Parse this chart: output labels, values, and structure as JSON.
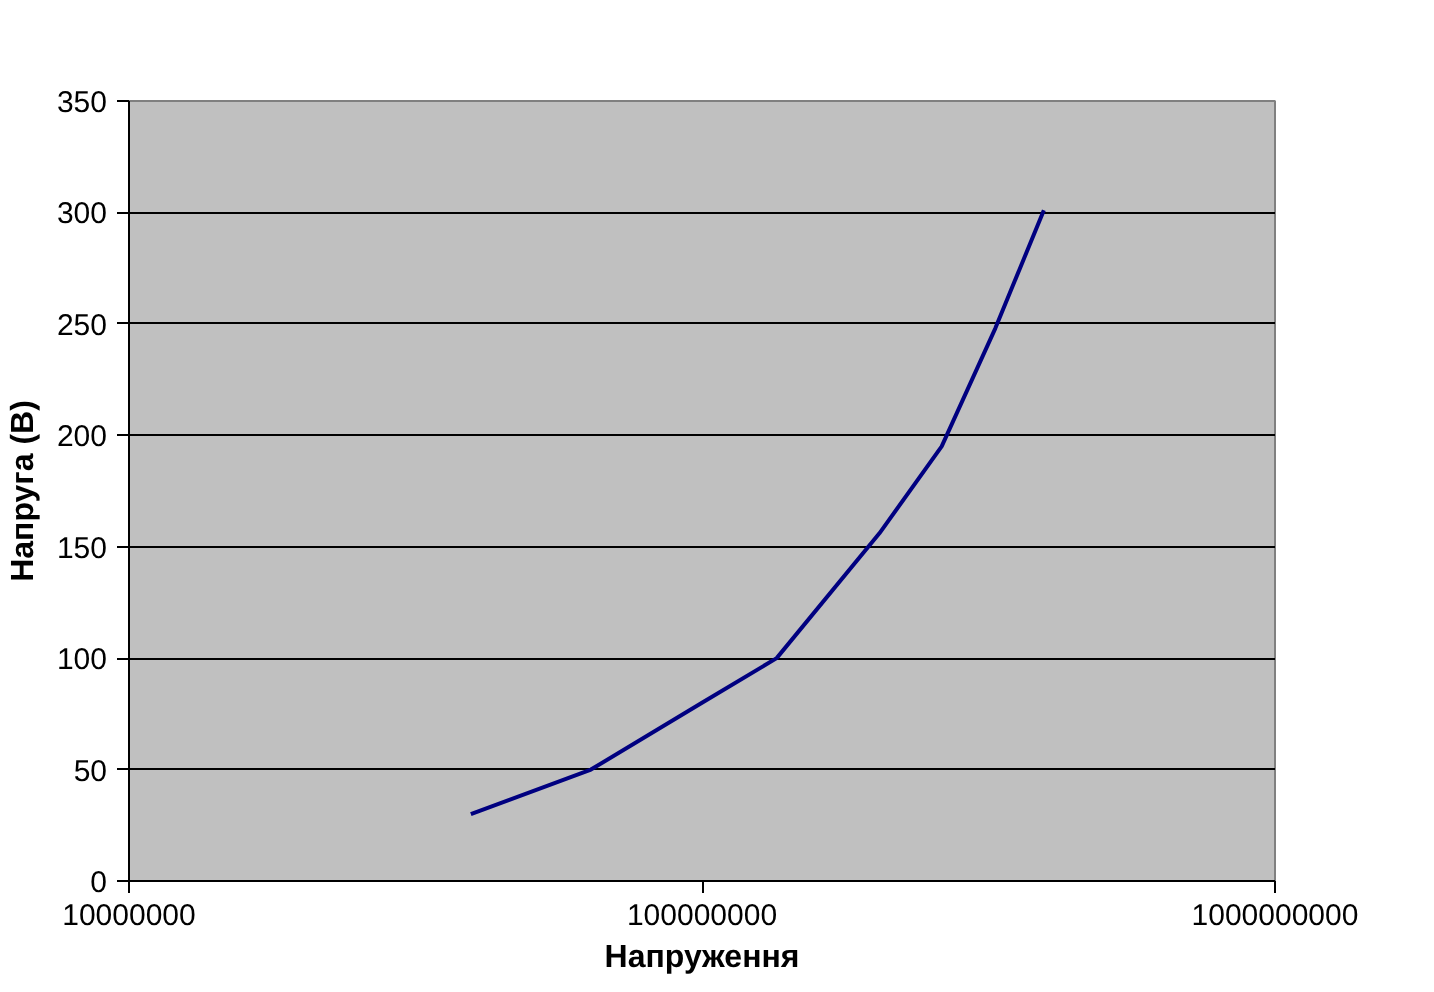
{
  "chart_data": {
    "type": "line",
    "xlabel": "Напруження",
    "ylabel": "Напруга (В)",
    "log": "x",
    "xlim": [
      10000000,
      1000000000
    ],
    "xticks": [
      10000000,
      100000000,
      1000000000
    ],
    "ylim": [
      0,
      350
    ],
    "yticks": [
      0,
      50,
      100,
      150,
      200,
      250,
      300,
      350
    ],
    "grid": "y",
    "x": [
      39500000,
      64000000,
      100000000,
      135000000,
      204000000,
      262000000,
      325000000,
      395000000
    ],
    "series": [
      {
        "color": "#000080",
        "values": [
          30,
          50,
          80,
          100,
          156,
          195,
          248,
          301
        ]
      }
    ]
  }
}
